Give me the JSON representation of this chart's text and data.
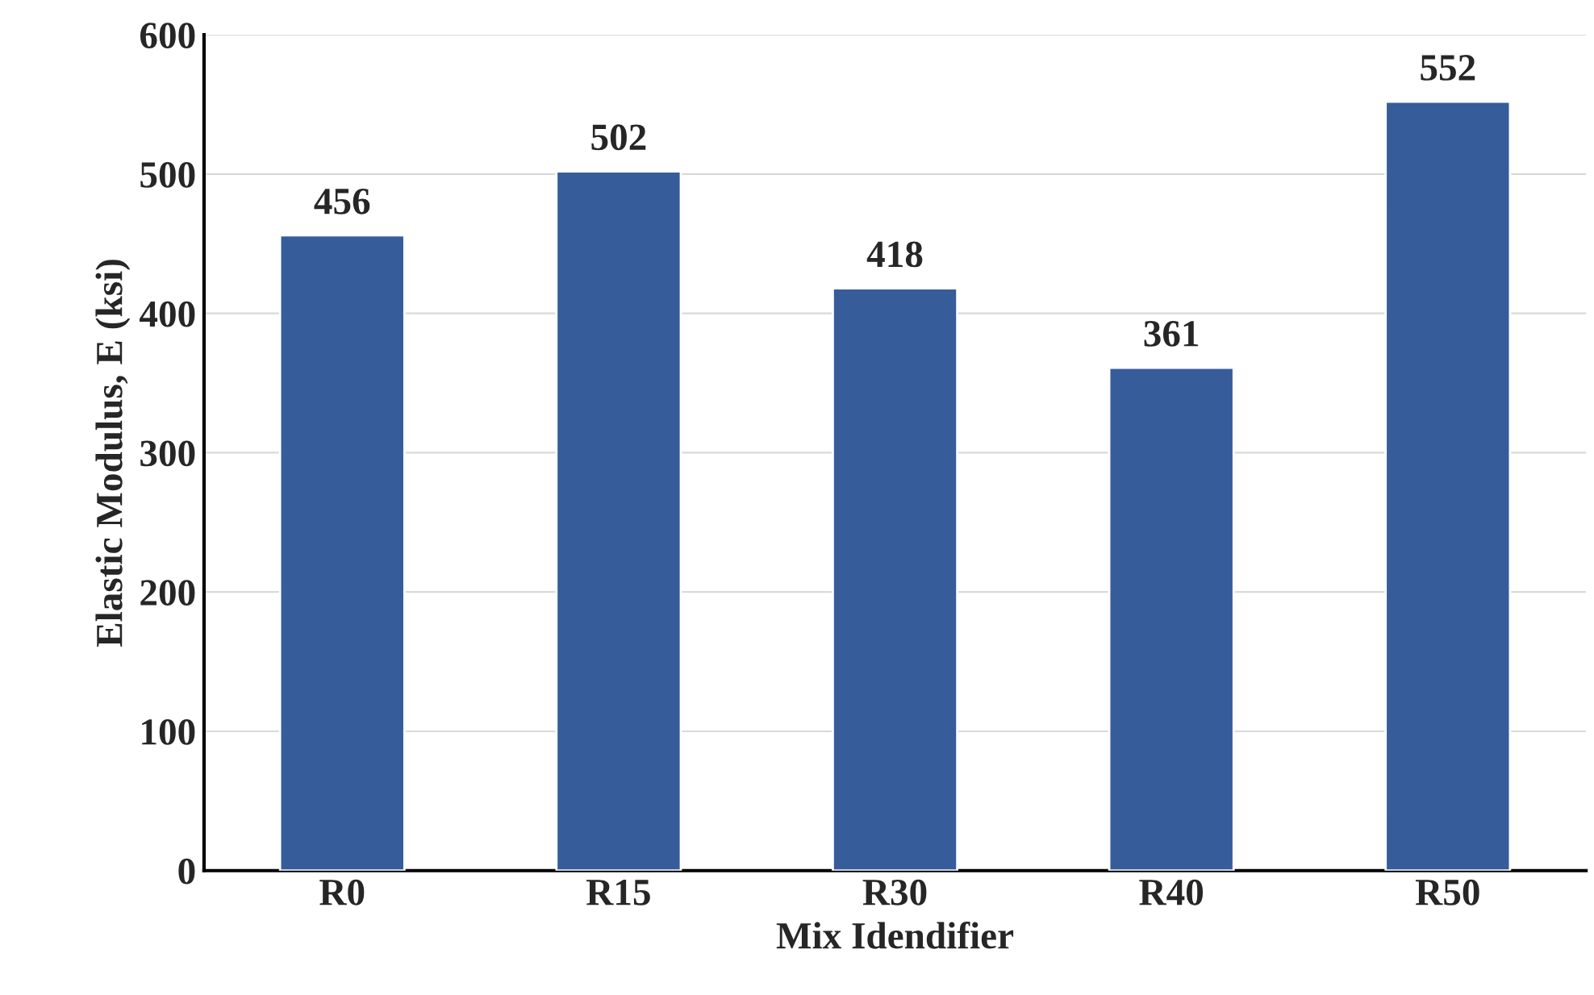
{
  "chart_data": {
    "type": "bar",
    "xlabel": "Mix Idendifier",
    "ylabel": "Elastic Modulus, E (ksi)",
    "categories": [
      "R0",
      "R15",
      "R30",
      "R40",
      "R50"
    ],
    "values": [
      456,
      502,
      418,
      361,
      552
    ],
    "color": "#365c9a",
    "ylim": [
      0,
      600
    ],
    "yticks": [
      0,
      100,
      200,
      300,
      400,
      500,
      600
    ],
    "grid": "y",
    "data_labels": true
  }
}
